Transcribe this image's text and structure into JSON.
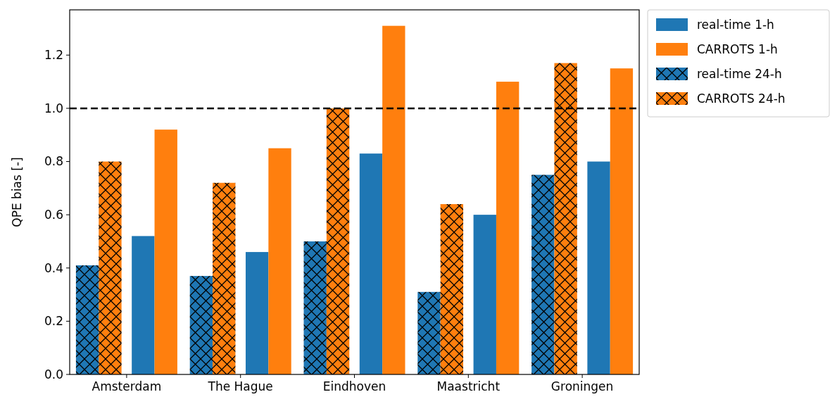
{
  "chart_data": {
    "type": "bar",
    "ylabel": "QPE bias [-]",
    "categories": [
      "Amsterdam",
      "The Hague",
      "Eindhoven",
      "Maastricht",
      "Groningen"
    ],
    "series": [
      {
        "name": "real-time 1-h",
        "color": "#1f77b4",
        "values": [
          0.52,
          0.46,
          0.83,
          0.6,
          0.8
        ]
      },
      {
        "name": "CARROTS 1-h",
        "color": "#ff7f0e",
        "values": [
          0.92,
          0.85,
          1.31,
          1.1,
          1.15
        ]
      },
      {
        "name": "real-time 24-h",
        "color": "#1f77b4",
        "marker": "cross",
        "values": [
          0.41,
          0.37,
          0.5,
          0.31,
          0.75
        ]
      },
      {
        "name": "CARROTS 24-h",
        "color": "#ff7f0e",
        "marker": "cross",
        "values": [
          0.8,
          0.72,
          1.0,
          0.64,
          1.17
        ]
      }
    ],
    "ylim": [
      0,
      1.37
    ],
    "yticks": [
      {
        "value": 0,
        "label": "0.0"
      },
      0.2,
      0.4,
      0.6,
      0.8,
      {
        "value": 1,
        "label": "1.0"
      },
      1.2
    ],
    "ref_lines": [
      {
        "axis": "y",
        "value": 1,
        "color": "#000000",
        "line_style": "dashed"
      }
    ],
    "legend": "top right",
    "grid": false
  }
}
